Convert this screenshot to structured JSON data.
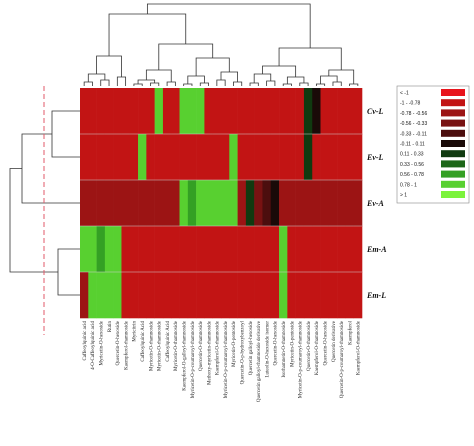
{
  "chart_data": {
    "type": "heatmap",
    "title": "",
    "rows": [
      "Cv-L",
      "Ev-L",
      "Ev-A",
      "Em-A",
      "Em-L"
    ],
    "columns": [
      "Caffeoylquinic acid",
      "4-O-Caffeoylquinic acid",
      "Myricetin-O-hexoside",
      "Rutin",
      "Quercetin-O-hexoside",
      "Kaempferol-rhamnoside",
      "Myricitrin",
      "Caffeoylquinic Acid",
      "Myricetin-O-rhamnoside",
      "Myricetin-O-rhamnoside",
      "Caffeoylquinic Acid",
      "Myricetin-O-rhamnoside",
      "Kaempferol-O-galloyl-rhamnoside",
      "Myricetin-O-p-coumaroyl-rhamnoside",
      "Quercetin-O-rhamnoside",
      "Methoxy-myricetin-rhamnoside",
      "Kaempferol-O-rhamnoside",
      "Myricetin-O-p-coumaroyl-rhamnoside",
      "Myricetin-O-pentoside",
      "Quercetin-O-p-hydroxybenzoyl",
      "Quercetin galloyl-hexoside",
      "Quercetin galloyl-rhamnoside derivative",
      "Luteolin-O-hexoside isomer",
      "Quercetin-O-hexoside",
      "Isorhamnetin-O-rhamnoside",
      "Myricetin-O-pentoside",
      "Myricetin-O-p-coumaroyl-rhamnoside",
      "Quercetin-O-rhamnoside",
      "Kaempferol-O-rhamnoside",
      "Quercetin-O-hexoside",
      "Quercetin derivative",
      "Quercetin-O-p-coumaroyl-rhamnoside",
      "Kaempferol",
      "Kaempferol-O-rhamnoside"
    ],
    "values": [
      [
        -0.9,
        -0.9,
        -0.9,
        -0.9,
        -0.9,
        -0.9,
        -0.9,
        -0.9,
        -0.9,
        0.9,
        -0.9,
        -0.9,
        0.9,
        0.9,
        0.9,
        -0.9,
        -0.9,
        -0.9,
        -0.9,
        -0.9,
        -0.9,
        -0.9,
        -0.9,
        -0.9,
        -0.9,
        -0.9,
        -0.9,
        0.3,
        0.1,
        -0.9,
        -0.9,
        -0.9,
        -0.9,
        -0.9
      ],
      [
        -0.9,
        -0.9,
        -0.9,
        -0.9,
        -0.9,
        -0.9,
        -0.9,
        0.9,
        -0.9,
        -0.9,
        -0.9,
        -0.9,
        -0.9,
        -0.9,
        -0.9,
        -0.9,
        -0.9,
        -0.9,
        0.9,
        -0.9,
        -0.9,
        -0.9,
        -0.9,
        -0.9,
        -0.9,
        -0.9,
        -0.9,
        0.2,
        -0.9,
        -0.9,
        -0.9,
        -0.9,
        -0.9,
        -0.9
      ],
      [
        -0.7,
        -0.7,
        -0.7,
        -0.7,
        -0.7,
        -0.7,
        -0.7,
        -0.7,
        -0.7,
        -0.7,
        -0.7,
        -0.7,
        0.9,
        0.7,
        0.9,
        0.9,
        0.9,
        0.9,
        0.9,
        -0.7,
        0.2,
        -0.5,
        -0.2,
        -0.1,
        -0.7,
        -0.7,
        -0.7,
        -0.7,
        -0.7,
        -0.7,
        -0.7,
        -0.7,
        -0.7,
        -0.7
      ],
      [
        0.9,
        0.9,
        0.6,
        0.9,
        0.9,
        -0.8,
        -0.8,
        -0.8,
        -0.8,
        -0.8,
        -0.8,
        -0.8,
        -0.8,
        -0.8,
        -0.8,
        -0.8,
        -0.8,
        -0.8,
        -0.8,
        -0.8,
        -0.8,
        -0.8,
        -0.8,
        -0.8,
        0.9,
        -0.8,
        -0.8,
        -0.8,
        -0.8,
        -0.8,
        -0.8,
        -0.8,
        -0.8,
        -0.8
      ],
      [
        -0.6,
        0.9,
        0.9,
        0.9,
        0.9,
        -0.8,
        -0.8,
        -0.8,
        -0.8,
        -0.8,
        -0.8,
        -0.8,
        -0.8,
        -0.8,
        -0.8,
        -0.8,
        -0.8,
        -0.8,
        -0.8,
        -0.8,
        -0.8,
        -0.8,
        -0.8,
        -0.8,
        0.9,
        -0.8,
        -0.8,
        -0.8,
        -0.8,
        -0.8,
        -0.8,
        -0.8,
        -0.8,
        -0.8
      ]
    ],
    "legend": {
      "placement": "right",
      "entries": [
        {
          "label": "< -1",
          "color": "#e8141c"
        },
        {
          "label": "-1 - -0.78",
          "color": "#c21414"
        },
        {
          "label": "-0.78 - -0.56",
          "color": "#9c1414"
        },
        {
          "label": "-0.56 - -0.33",
          "color": "#781212"
        },
        {
          "label": "-0.33 - -0.11",
          "color": "#4c0e0e"
        },
        {
          "label": "-0.11 - 0.11",
          "color": "#1a0a08"
        },
        {
          "label": "0.11 - 0.33",
          "color": "#103a10"
        },
        {
          "label": "0.33 - 0.56",
          "color": "#1c6618"
        },
        {
          "label": "0.56 - 0.78",
          "color": "#34a024"
        },
        {
          "label": "0.78 - 1",
          "color": "#58d030"
        },
        {
          "label": "> 1",
          "color": "#7cf33c"
        }
      ]
    },
    "dendrograms": {
      "row": true,
      "column": true
    },
    "cutoff_line": {
      "color": "#e05a6a",
      "style": "dashed"
    }
  }
}
